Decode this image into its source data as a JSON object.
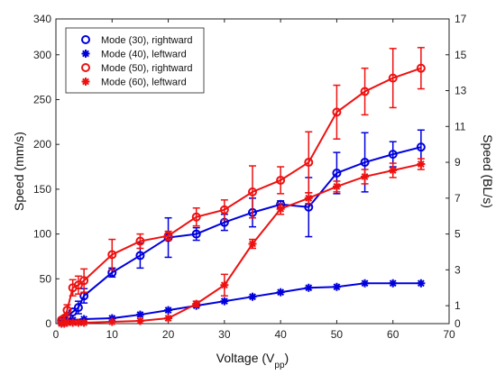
{
  "chart_data": {
    "type": "line",
    "xlabel": "Voltage (V",
    "xlabel_sub": "pp",
    "xlabel_end": ")",
    "ylabel_left": "Speed (mm/s)",
    "ylabel_right": "Speed (BL/s)",
    "xlim": [
      0,
      70
    ],
    "ylim_left": [
      0,
      340
    ],
    "ylim_right": [
      0,
      17
    ],
    "x_ticks": [
      "0",
      "10",
      "20",
      "30",
      "40",
      "50",
      "60",
      "70"
    ],
    "y_left_ticks": [
      "0",
      "50",
      "100",
      "150",
      "200",
      "250",
      "300",
      "340"
    ],
    "y_right_ticks": [
      "0",
      "1",
      "3",
      "5",
      "7",
      "9",
      "11",
      "13",
      "15",
      "17"
    ],
    "grid": false,
    "legend_position": "top-left",
    "series": [
      {
        "name": "Mode (30), rightward",
        "color": "#0000dd",
        "marker": "circle",
        "points": [
          {
            "x": 1,
            "y": 3
          },
          {
            "x": 1.5,
            "y": 5
          },
          {
            "x": 2,
            "y": 8
          },
          {
            "x": 3,
            "y": 13
          },
          {
            "x": 4,
            "y": 18,
            "err": 7
          },
          {
            "x": 5,
            "y": 31,
            "err": 8
          },
          {
            "x": 10,
            "y": 57,
            "err": 5
          },
          {
            "x": 15,
            "y": 76,
            "err": 14
          },
          {
            "x": 20,
            "y": 96,
            "err": 22
          },
          {
            "x": 25,
            "y": 100,
            "err": 7
          },
          {
            "x": 30,
            "y": 113,
            "err": 9
          },
          {
            "x": 35,
            "y": 124,
            "err": 16
          },
          {
            "x": 40,
            "y": 133,
            "err": 4
          },
          {
            "x": 45,
            "y": 130,
            "err": 33
          },
          {
            "x": 50,
            "y": 168,
            "err": 23
          },
          {
            "x": 55,
            "y": 180,
            "err": 33
          },
          {
            "x": 60,
            "y": 189,
            "err": 14
          },
          {
            "x": 65,
            "y": 197,
            "err": 19
          }
        ]
      },
      {
        "name": "Mode (40), leftward",
        "color": "#0000dd",
        "marker": "star",
        "points": [
          {
            "x": 1,
            "y": 1
          },
          {
            "x": 1.5,
            "y": 2
          },
          {
            "x": 2,
            "y": 3
          },
          {
            "x": 3,
            "y": 4
          },
          {
            "x": 5,
            "y": 5
          },
          {
            "x": 10,
            "y": 6
          },
          {
            "x": 15,
            "y": 10
          },
          {
            "x": 20,
            "y": 15
          },
          {
            "x": 25,
            "y": 20
          },
          {
            "x": 30,
            "y": 25
          },
          {
            "x": 35,
            "y": 30
          },
          {
            "x": 40,
            "y": 35
          },
          {
            "x": 45,
            "y": 40
          },
          {
            "x": 50,
            "y": 41
          },
          {
            "x": 55,
            "y": 45
          },
          {
            "x": 60,
            "y": 45
          },
          {
            "x": 65,
            "y": 45
          }
        ]
      },
      {
        "name": "Mode (50), rightward",
        "color": "#ee1111",
        "marker": "circle",
        "points": [
          {
            "x": 1,
            "y": 4
          },
          {
            "x": 1.5,
            "y": 6
          },
          {
            "x": 2,
            "y": 15,
            "err": 6
          },
          {
            "x": 3,
            "y": 40,
            "err": 9
          },
          {
            "x": 4,
            "y": 43,
            "err": 10
          },
          {
            "x": 5,
            "y": 48,
            "err": 13
          },
          {
            "x": 10,
            "y": 77,
            "err": 17
          },
          {
            "x": 15,
            "y": 92,
            "err": 8
          },
          {
            "x": 20,
            "y": 98,
            "err": 5
          },
          {
            "x": 25,
            "y": 119,
            "err": 10
          },
          {
            "x": 30,
            "y": 127,
            "err": 11
          },
          {
            "x": 35,
            "y": 147,
            "err": 29
          },
          {
            "x": 40,
            "y": 160,
            "err": 15
          },
          {
            "x": 45,
            "y": 180,
            "err": 34
          },
          {
            "x": 50,
            "y": 236,
            "err": 30
          },
          {
            "x": 55,
            "y": 259,
            "err": 26
          },
          {
            "x": 60,
            "y": 274,
            "err": 33
          },
          {
            "x": 65,
            "y": 285,
            "err": 23
          }
        ]
      },
      {
        "name": "Mode (60), leftward",
        "color": "#ee1111",
        "marker": "star",
        "points": [
          {
            "x": 1,
            "y": 0
          },
          {
            "x": 1.5,
            "y": 0
          },
          {
            "x": 2,
            "y": 1
          },
          {
            "x": 3,
            "y": 1
          },
          {
            "x": 4,
            "y": 1
          },
          {
            "x": 5,
            "y": 1
          },
          {
            "x": 10,
            "y": 2
          },
          {
            "x": 15,
            "y": 3
          },
          {
            "x": 20,
            "y": 6
          },
          {
            "x": 25,
            "y": 22,
            "err": 3
          },
          {
            "x": 30,
            "y": 43,
            "err": 12
          },
          {
            "x": 35,
            "y": 89,
            "err": 5
          },
          {
            "x": 40,
            "y": 128,
            "err": 6
          },
          {
            "x": 45,
            "y": 140,
            "err": 6
          },
          {
            "x": 50,
            "y": 153,
            "err": 6
          },
          {
            "x": 55,
            "y": 164,
            "err": 8
          },
          {
            "x": 60,
            "y": 171,
            "err": 8
          },
          {
            "x": 65,
            "y": 178,
            "err": 6
          }
        ]
      }
    ]
  }
}
